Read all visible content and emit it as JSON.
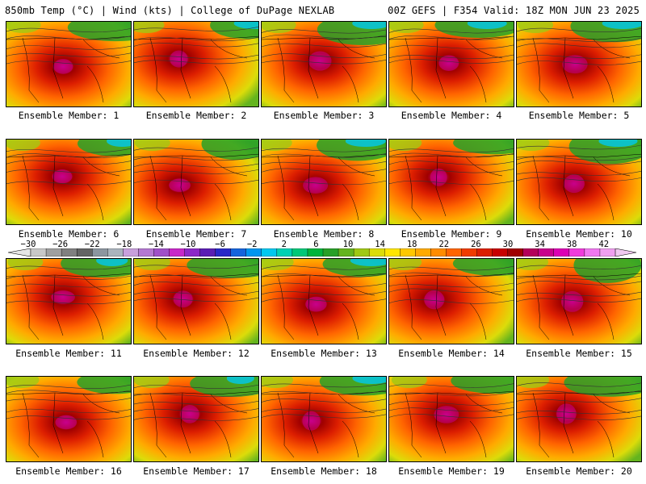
{
  "header": {
    "left_title": "850mb Temp (°C) | Wind (kts) | College of DuPage NEXLAB",
    "right_title": "00Z GEFS | F354 Valid: 18Z MON JUN 23 2025"
  },
  "panels": [
    {
      "label": "Ensemble Member: 1"
    },
    {
      "label": "Ensemble Member: 2"
    },
    {
      "label": "Ensemble Member: 3"
    },
    {
      "label": "Ensemble Member: 4"
    },
    {
      "label": "Ensemble Member: 5"
    },
    {
      "label": "Ensemble Member: 6"
    },
    {
      "label": "Ensemble Member: 7"
    },
    {
      "label": "Ensemble Member: 8"
    },
    {
      "label": "Ensemble Member: 9"
    },
    {
      "label": "Ensemble Member: 10"
    },
    {
      "label": "Ensemble Member: 11"
    },
    {
      "label": "Ensemble Member: 12"
    },
    {
      "label": "Ensemble Member: 13"
    },
    {
      "label": "Ensemble Member: 14"
    },
    {
      "label": "Ensemble Member: 15"
    },
    {
      "label": "Ensemble Member: 16"
    },
    {
      "label": "Ensemble Member: 17"
    },
    {
      "label": "Ensemble Member: 18"
    },
    {
      "label": "Ensemble Member: 19"
    },
    {
      "label": "Ensemble Member: 20"
    }
  ],
  "colorbar": {
    "tick_labels": [
      "−30",
      "−26",
      "−22",
      "−18",
      "−14",
      "−10",
      "−6",
      "−2",
      "2",
      "6",
      "10",
      "14",
      "18",
      "22",
      "26",
      "30",
      "34",
      "38",
      "42"
    ],
    "colors": [
      "#c8c8c8",
      "#a0a0a0",
      "#808080",
      "#646464",
      "#8c96a0",
      "#aab4be",
      "#c8a0dc",
      "#b478d2",
      "#a050c8",
      "#c828c8",
      "#8c28c8",
      "#5a1eb4",
      "#2828c8",
      "#1464dc",
      "#0096f0",
      "#00c8f0",
      "#00d2b4",
      "#00c878",
      "#00b43c",
      "#28a028",
      "#64b41e",
      "#a0c814",
      "#dcdc0a",
      "#ffe600",
      "#ffc800",
      "#ffaa00",
      "#ff8c00",
      "#ff6400",
      "#f03c00",
      "#dc1e00",
      "#c80000",
      "#a00000",
      "#b4005a",
      "#c8008c",
      "#dc00b4",
      "#f03cdc",
      "#f078f0",
      "#f0a0f0"
    ]
  }
}
